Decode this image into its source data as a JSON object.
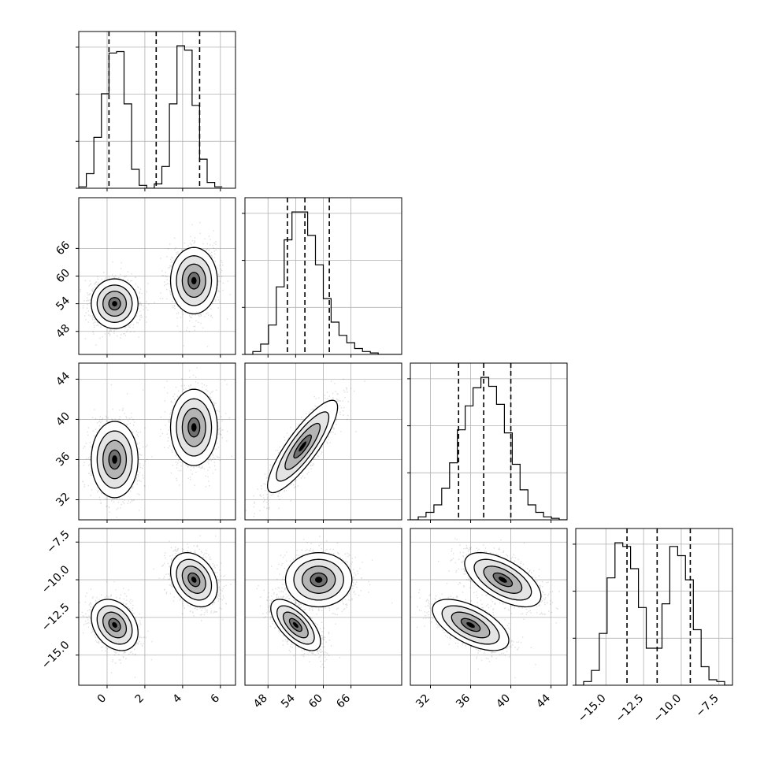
{
  "chart_data": {
    "type": "corner",
    "parameters": [
      {
        "id": "p0",
        "range": [
          -1.5,
          6.8
        ],
        "ticks": [
          0,
          2,
          4,
          6
        ],
        "tick_labels": [
          "0",
          "2",
          "4",
          "6"
        ],
        "quantiles": [
          0.1,
          2.6,
          4.9
        ],
        "hist": {
          "start": -1.5,
          "step": 0.4,
          "counts": [
            1,
            10,
            35,
            65,
            93,
            94,
            58,
            13,
            2,
            0,
            3,
            15,
            58,
            98,
            95,
            57,
            20,
            4,
            1
          ]
        }
      },
      {
        "id": "p1",
        "range": [
          43,
          77
        ],
        "ticks": [
          48,
          54,
          60,
          66
        ],
        "tick_labels": [
          "48",
          "54",
          "60",
          "66"
        ],
        "quantiles": [
          52.2,
          56.0,
          61.3
        ],
        "hist": {
          "start": 43,
          "step": 1.7,
          "counts": [
            0,
            2,
            7,
            20,
            46,
            78,
            97,
            97,
            81,
            61,
            38,
            22,
            13,
            8,
            4,
            2,
            1,
            0,
            0,
            0
          ]
        }
      },
      {
        "id": "p2",
        "range": [
          30,
          45.6
        ],
        "ticks": [
          32,
          36,
          40,
          44
        ],
        "tick_labels": [
          "32",
          "36",
          "40",
          "44"
        ],
        "quantiles": [
          34.8,
          37.3,
          40.0
        ],
        "hist": {
          "start": 30,
          "step": 0.78,
          "counts": [
            0,
            2,
            5,
            10,
            21,
            38,
            60,
            76,
            88,
            95,
            89,
            77,
            58,
            37,
            20,
            10,
            5,
            2,
            1,
            0
          ]
        }
      },
      {
        "id": "p3",
        "range": [
          -17.0,
          -6.6
        ],
        "ticks": [
          -15.0,
          -12.5,
          -10.0,
          -7.5
        ],
        "tick_labels": [
          "−15.0",
          "−12.5",
          "−10.0",
          "−7.5"
        ],
        "quantiles": [
          -13.6,
          -11.6,
          -9.4
        ],
        "hist": {
          "start": -17.0,
          "step": 0.52,
          "counts": [
            0,
            2,
            8,
            28,
            58,
            77,
            75,
            63,
            42,
            20,
            20,
            44,
            75,
            70,
            57,
            30,
            10,
            3,
            2,
            0
          ]
        }
      }
    ],
    "pairs": [
      {
        "x": 0,
        "y": 1,
        "clusters": [
          {
            "mx": 0.4,
            "my": 54.0,
            "sx": 0.62,
            "sy": 2.7,
            "r": 0.0,
            "w": 1
          },
          {
            "mx": 4.6,
            "my": 59.0,
            "sx": 0.62,
            "sy": 3.6,
            "r": 0.0,
            "w": 1
          }
        ]
      },
      {
        "x": 0,
        "y": 2,
        "clusters": [
          {
            "mx": 0.4,
            "my": 36.0,
            "sx": 0.62,
            "sy": 1.9,
            "r": 0.0,
            "w": 1
          },
          {
            "mx": 4.6,
            "my": 39.2,
            "sx": 0.62,
            "sy": 1.9,
            "r": 0.0,
            "w": 1
          }
        ]
      },
      {
        "x": 1,
        "y": 2,
        "clusters": [
          {
            "mx": 55.5,
            "my": 37.3,
            "sx": 3.8,
            "sy": 2.3,
            "r": 0.85,
            "w": 1
          }
        ]
      },
      {
        "x": 0,
        "y": 3,
        "clusters": [
          {
            "mx": 0.4,
            "my": -13.0,
            "sx": 0.62,
            "sy": 0.85,
            "r": -0.3,
            "w": 1
          },
          {
            "mx": 4.6,
            "my": -10.0,
            "sx": 0.62,
            "sy": 0.9,
            "r": -0.3,
            "w": 1
          }
        ]
      },
      {
        "x": 1,
        "y": 3,
        "clusters": [
          {
            "mx": 54.0,
            "my": -13.0,
            "sx": 2.7,
            "sy": 0.85,
            "r": -0.65,
            "w": 1
          },
          {
            "mx": 59.0,
            "my": -10.0,
            "sx": 3.6,
            "sy": 0.9,
            "r": 0.0,
            "w": 1
          }
        ]
      },
      {
        "x": 2,
        "y": 3,
        "clusters": [
          {
            "mx": 36.0,
            "my": -13.0,
            "sx": 1.9,
            "sy": 0.85,
            "r": -0.6,
            "w": 1
          },
          {
            "mx": 39.2,
            "my": -10.0,
            "sx": 1.9,
            "sy": 0.9,
            "r": -0.6,
            "w": 1
          }
        ]
      }
    ],
    "contour_levels_sigma": [
      0.5,
      1.0,
      1.5,
      2.0
    ],
    "grid": true,
    "quantile_line_style": "dashed"
  }
}
